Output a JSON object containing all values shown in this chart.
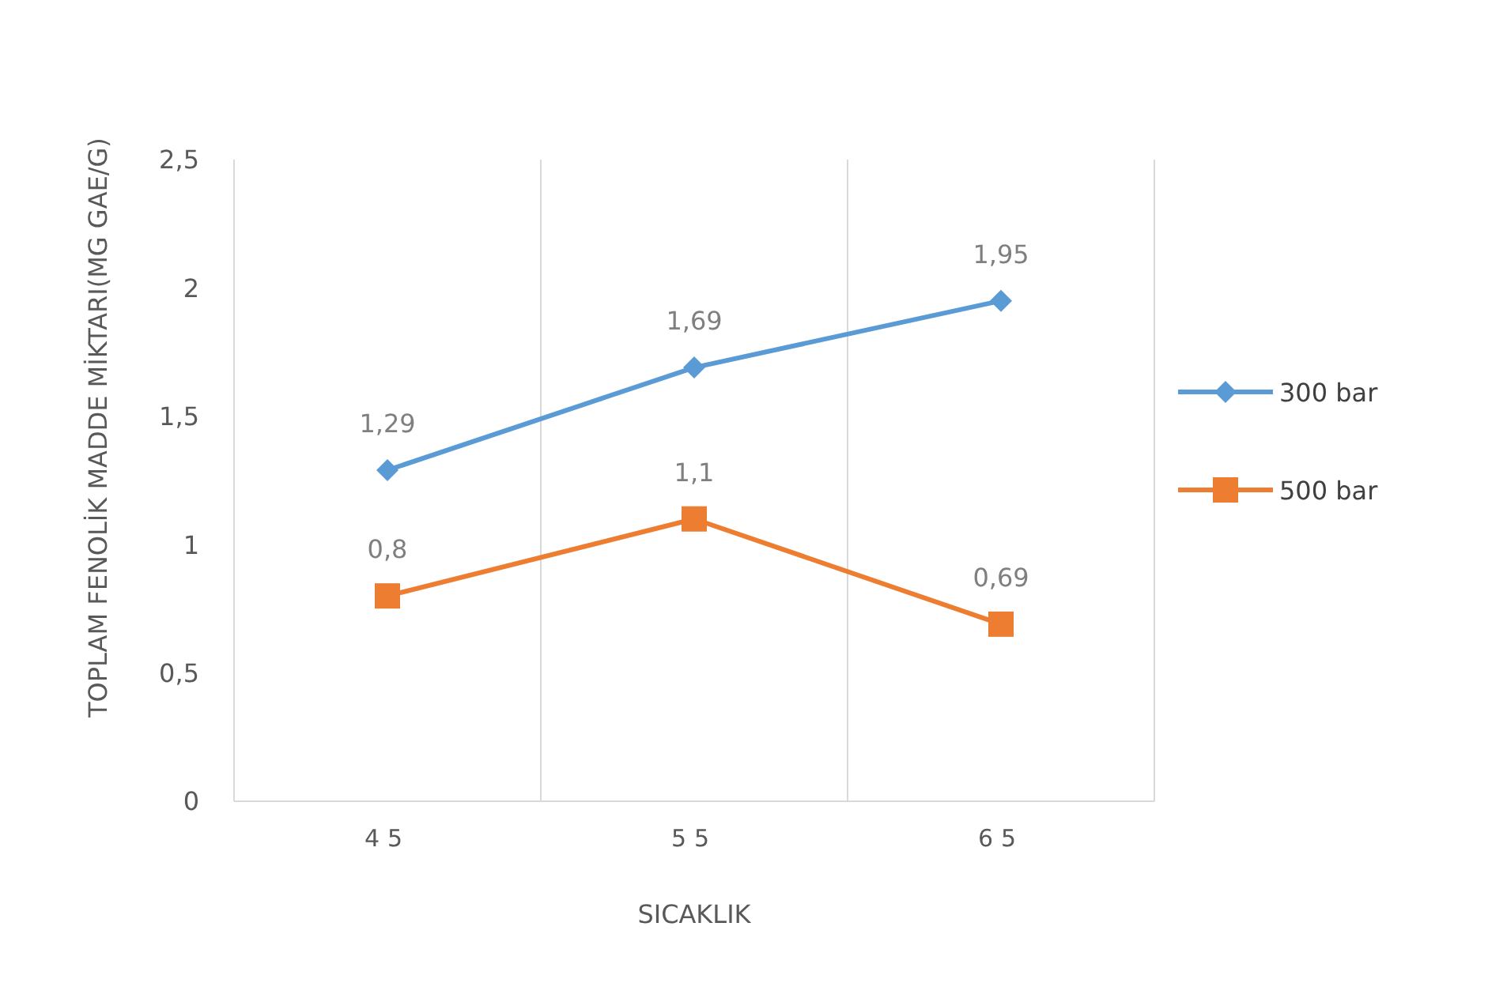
{
  "chart_data": {
    "type": "line",
    "xlabel": "SICAKLIK",
    "ylabel": "TOPLAM FENOLİK MADDE MİKTARI(MG GAE/G)",
    "categories": [
      "45",
      "55",
      "65"
    ],
    "series": [
      {
        "name": "300 bar",
        "color": "#5b9bd5",
        "marker": "diamond",
        "values": [
          1.29,
          1.69,
          1.95
        ],
        "value_labels": [
          "1,29",
          "1,69",
          "1,95"
        ]
      },
      {
        "name": "500 bar",
        "color": "#ed7d31",
        "marker": "square",
        "values": [
          0.8,
          1.1,
          0.69
        ],
        "value_labels": [
          "0,8",
          "1,1",
          "0,69"
        ]
      }
    ],
    "ylim": [
      0,
      2.5
    ],
    "yticks": [
      {
        "value": 0,
        "label": "0"
      },
      {
        "value": 0.5,
        "label": "0,5"
      },
      {
        "value": 1,
        "label": "1"
      },
      {
        "value": 1.5,
        "label": "1,5"
      },
      {
        "value": 2,
        "label": "2"
      },
      {
        "value": 2.5,
        "label": "2,5"
      }
    ],
    "grid": "x",
    "legend": "right",
    "line_style": "solid"
  }
}
